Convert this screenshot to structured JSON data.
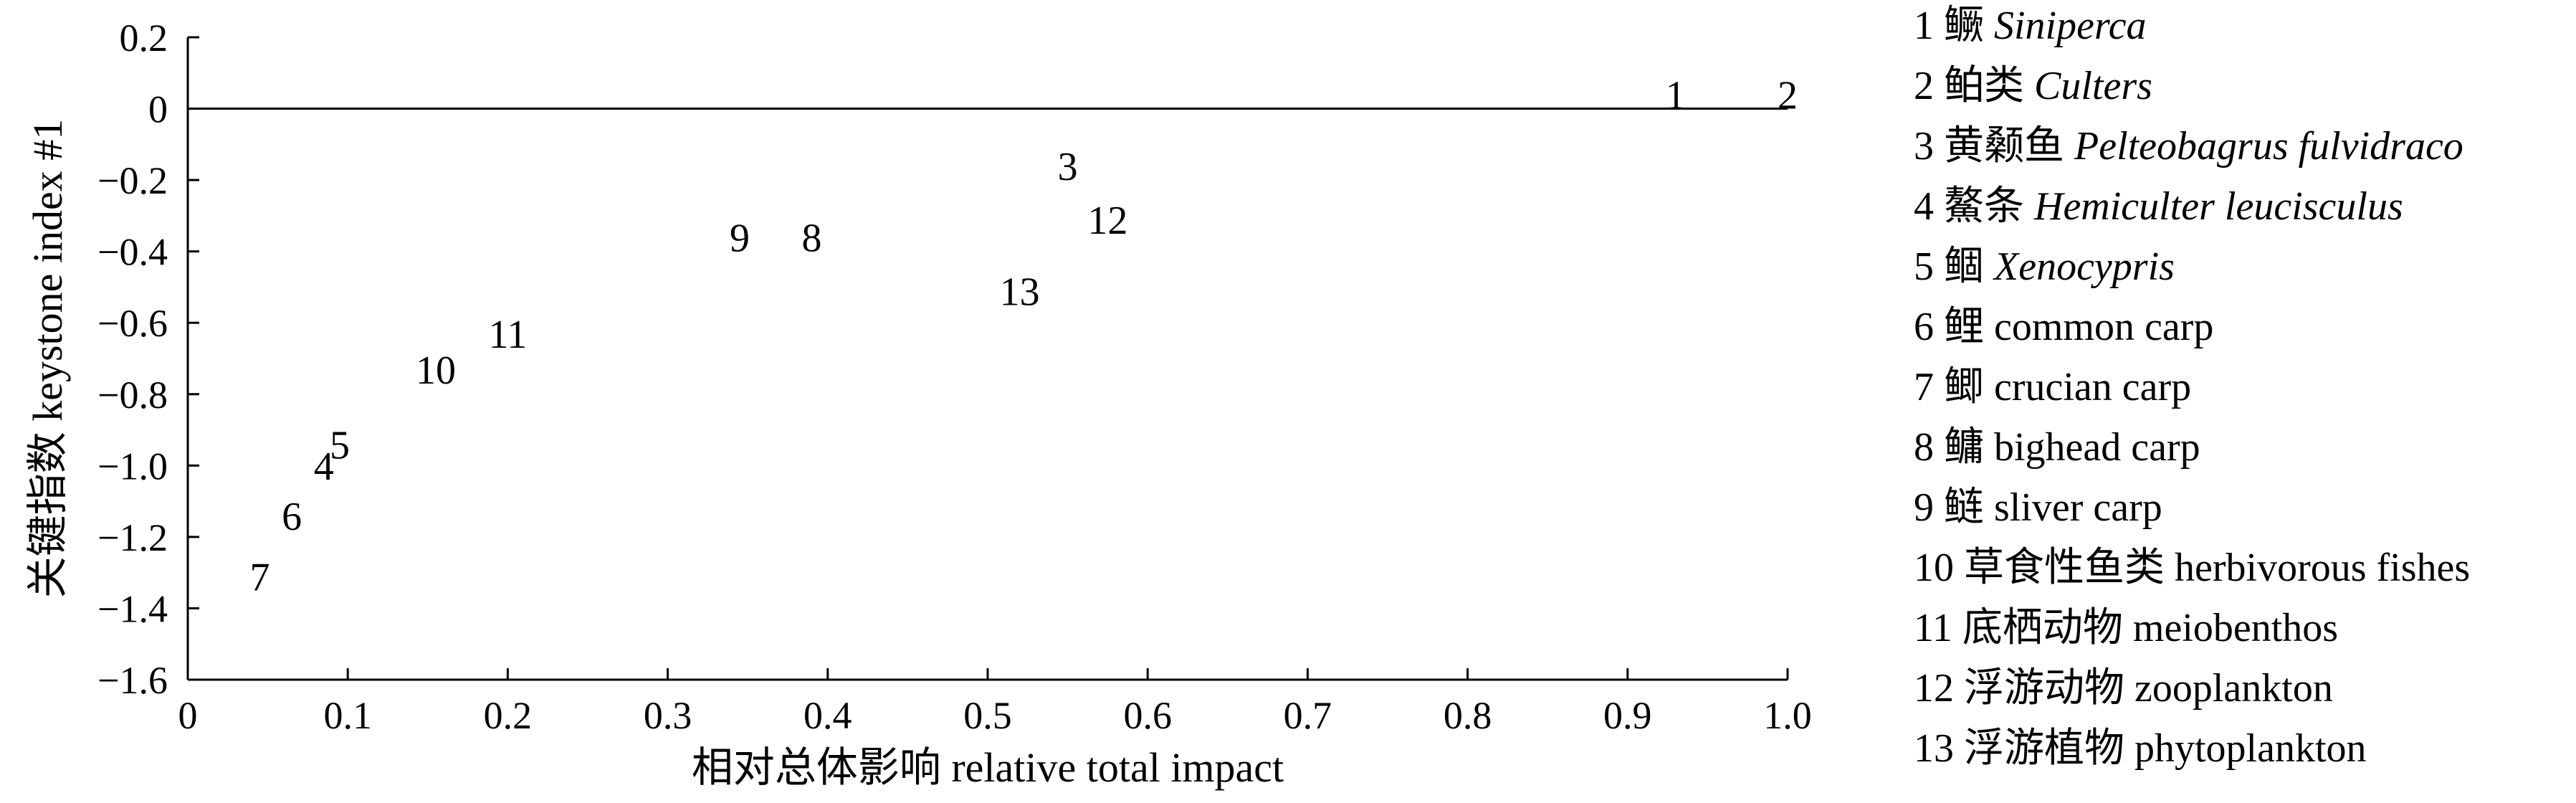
{
  "chart_data": {
    "type": "scatter",
    "title": "",
    "xlabel": "相对总体影响 relative total impact",
    "ylabel": "关键指数 keystone index #1",
    "xlim": [
      0,
      1.0
    ],
    "ylim": [
      -1.6,
      0.2
    ],
    "x_ticks": [
      "0",
      "0.1",
      "0.2",
      "0.3",
      "0.4",
      "0.5",
      "0.6",
      "0.7",
      "0.8",
      "0.9",
      "1.0"
    ],
    "y_ticks": [
      "0.2",
      "0",
      "−0.2",
      "−0.4",
      "−0.6",
      "−0.8",
      "−1.0",
      "−1.2",
      "−1.4",
      "−1.6"
    ],
    "reference_line_y": 0,
    "points": [
      {
        "label": "1",
        "x": 0.93,
        "y": 0.0
      },
      {
        "label": "2",
        "x": 1.0,
        "y": 0.0
      },
      {
        "label": "3",
        "x": 0.55,
        "y": -0.2
      },
      {
        "label": "4",
        "x": 0.085,
        "y": -1.04
      },
      {
        "label": "5",
        "x": 0.095,
        "y": -0.98
      },
      {
        "label": "6",
        "x": 0.065,
        "y": -1.18
      },
      {
        "label": "7",
        "x": 0.045,
        "y": -1.35
      },
      {
        "label": "8",
        "x": 0.39,
        "y": -0.4
      },
      {
        "label": "9",
        "x": 0.345,
        "y": -0.4
      },
      {
        "label": "10",
        "x": 0.155,
        "y": -0.77
      },
      {
        "label": "11",
        "x": 0.2,
        "y": -0.67
      },
      {
        "label": "12",
        "x": 0.575,
        "y": -0.35
      },
      {
        "label": "13",
        "x": 0.52,
        "y": -0.55
      }
    ],
    "legend": [
      {
        "num": "1",
        "cn": "鳜",
        "name": "Siniperca",
        "italic": true
      },
      {
        "num": "2",
        "cn": "鲌类",
        "name": "Culters",
        "italic": true
      },
      {
        "num": "3",
        "cn": "黄颡鱼",
        "name": "Pelteobagrus fulvidraco",
        "italic": true
      },
      {
        "num": "4",
        "cn": " 鰲条",
        "name": "Hemiculter leucisculus",
        "italic": true
      },
      {
        "num": "5",
        "cn": "鲴",
        "name": "Xenocypris",
        "italic": true
      },
      {
        "num": "6",
        "cn": "鲤",
        "name": "common carp",
        "italic": false
      },
      {
        "num": "7",
        "cn": "鲫",
        "name": "crucian carp",
        "italic": false
      },
      {
        "num": "8",
        "cn": "鳙",
        "name": "bighead carp",
        "italic": false
      },
      {
        "num": "9",
        "cn": "鲢",
        "name": "sliver carp",
        "italic": false
      },
      {
        "num": "10",
        "cn": "草食性鱼类",
        "name": "herbivorous fishes",
        "italic": false
      },
      {
        "num": "11",
        "cn": "底栖动物",
        "name": "meiobenthos",
        "italic": false
      },
      {
        "num": "12",
        "cn": "浮游动物",
        "name": "zooplankton",
        "italic": false
      },
      {
        "num": "13",
        "cn": "浮游植物",
        "name": "phytoplankton",
        "italic": false
      }
    ]
  }
}
